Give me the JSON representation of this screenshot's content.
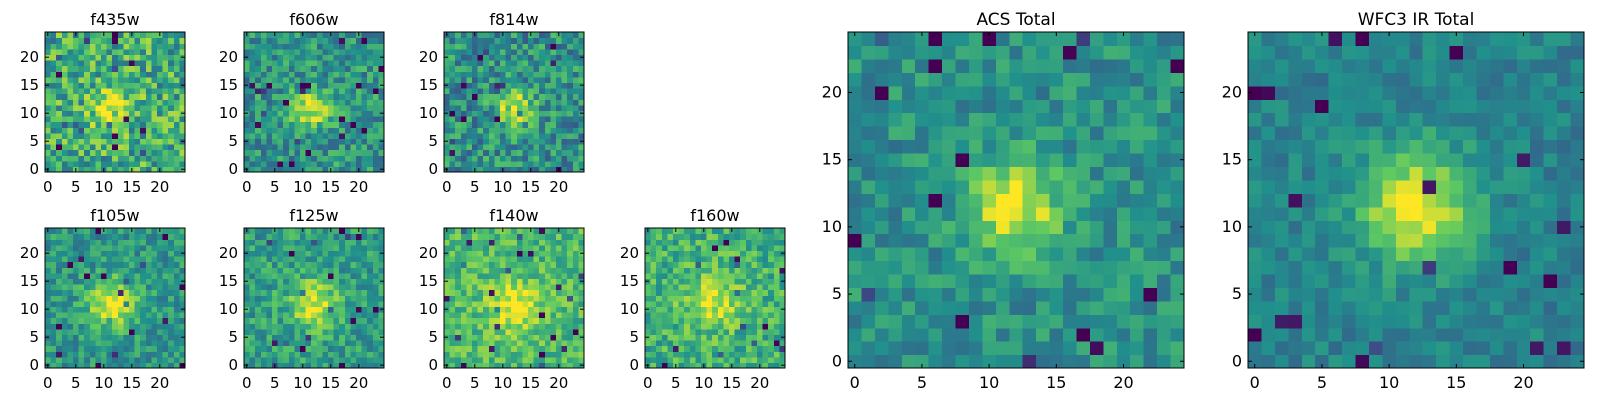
{
  "figure": {
    "background": "#ffffff"
  },
  "colormap": {
    "name": "viridis",
    "stops": [
      "#440154",
      "#3b528b",
      "#21918c",
      "#5ec962",
      "#fde725"
    ]
  },
  "chart_data": [
    {
      "type": "heatmap",
      "title": "f435w",
      "xlim": [
        -0.5,
        24.5
      ],
      "ylim": [
        -0.5,
        24.5
      ],
      "xticks": [
        0,
        5,
        10,
        15,
        20
      ],
      "yticks": [
        0,
        5,
        10,
        15,
        20
      ],
      "grid": "25x25 pixels",
      "noise": 0.26,
      "base": 0.62,
      "peak": 0.97,
      "sigma": 2.4,
      "center": [
        11.5,
        11.0
      ],
      "seed": 11
    },
    {
      "type": "heatmap",
      "title": "f606w",
      "xlim": [
        -0.5,
        24.5
      ],
      "ylim": [
        -0.5,
        24.5
      ],
      "xticks": [
        0,
        5,
        10,
        15,
        20
      ],
      "yticks": [
        0,
        5,
        10,
        15,
        20
      ],
      "grid": "25x25 pixels",
      "noise": 0.2,
      "base": 0.52,
      "peak": 0.98,
      "sigma": 2.3,
      "center": [
        11.5,
        11.0
      ],
      "seed": 23
    },
    {
      "type": "heatmap",
      "title": "f814w",
      "xlim": [
        -0.5,
        24.5
      ],
      "ylim": [
        -0.5,
        24.5
      ],
      "xticks": [
        0,
        5,
        10,
        15,
        20
      ],
      "yticks": [
        0,
        5,
        10,
        15,
        20
      ],
      "grid": "25x25 pixels",
      "noise": 0.22,
      "base": 0.5,
      "peak": 0.98,
      "sigma": 2.2,
      "center": [
        12.0,
        11.0
      ],
      "seed": 37
    },
    {
      "type": "heatmap",
      "title": "f105w",
      "xlim": [
        -0.5,
        24.5
      ],
      "ylim": [
        -0.5,
        24.5
      ],
      "xticks": [
        0,
        5,
        10,
        15,
        20
      ],
      "yticks": [
        0,
        5,
        10,
        15,
        20
      ],
      "grid": "25x25 pixels",
      "noise": 0.16,
      "base": 0.52,
      "peak": 0.96,
      "sigma": 3.2,
      "center": [
        11.5,
        11.0
      ],
      "seed": 41
    },
    {
      "type": "heatmap",
      "title": "f125w",
      "xlim": [
        -0.5,
        24.5
      ],
      "ylim": [
        -0.5,
        24.5
      ],
      "xticks": [
        0,
        5,
        10,
        15,
        20
      ],
      "yticks": [
        0,
        5,
        10,
        15,
        20
      ],
      "grid": "25x25 pixels",
      "noise": 0.17,
      "base": 0.56,
      "peak": 0.96,
      "sigma": 3.0,
      "center": [
        12.0,
        11.0
      ],
      "seed": 53
    },
    {
      "type": "heatmap",
      "title": "f140w",
      "xlim": [
        -0.5,
        24.5
      ],
      "ylim": [
        -0.5,
        24.5
      ],
      "xticks": [
        0,
        5,
        10,
        15,
        20
      ],
      "yticks": [
        0,
        5,
        10,
        15,
        20
      ],
      "grid": "25x25 pixels",
      "noise": 0.16,
      "base": 0.68,
      "peak": 0.98,
      "sigma": 3.3,
      "center": [
        12.0,
        10.5
      ],
      "seed": 67
    },
    {
      "type": "heatmap",
      "title": "f160w",
      "xlim": [
        -0.5,
        24.5
      ],
      "ylim": [
        -0.5,
        24.5
      ],
      "xticks": [
        0,
        5,
        10,
        15,
        20
      ],
      "yticks": [
        0,
        5,
        10,
        15,
        20
      ],
      "grid": "25x25 pixels",
      "noise": 0.18,
      "base": 0.64,
      "peak": 0.96,
      "sigma": 3.2,
      "center": [
        11.5,
        11.5
      ],
      "seed": 79
    },
    {
      "type": "heatmap",
      "title": "ACS Total",
      "xlim": [
        -0.5,
        24.5
      ],
      "ylim": [
        -0.5,
        24.5
      ],
      "xticks": [
        0,
        5,
        10,
        15,
        20
      ],
      "yticks": [
        0,
        5,
        10,
        15,
        20
      ],
      "grid": "25x25 pixels",
      "noise": 0.14,
      "base": 0.5,
      "peak": 0.99,
      "sigma": 2.4,
      "center": [
        12.0,
        11.5
      ],
      "seed": 97
    },
    {
      "type": "heatmap",
      "title": "WFC3 IR Total",
      "xlim": [
        -0.5,
        24.5
      ],
      "ylim": [
        -0.5,
        24.5
      ],
      "xticks": [
        0,
        5,
        10,
        15,
        20
      ],
      "yticks": [
        0,
        5,
        10,
        15,
        20
      ],
      "grid": "25x25 pixels",
      "noise": 0.1,
      "base": 0.44,
      "peak": 0.99,
      "sigma": 3.0,
      "center": [
        12.0,
        11.5
      ],
      "seed": 113
    }
  ]
}
